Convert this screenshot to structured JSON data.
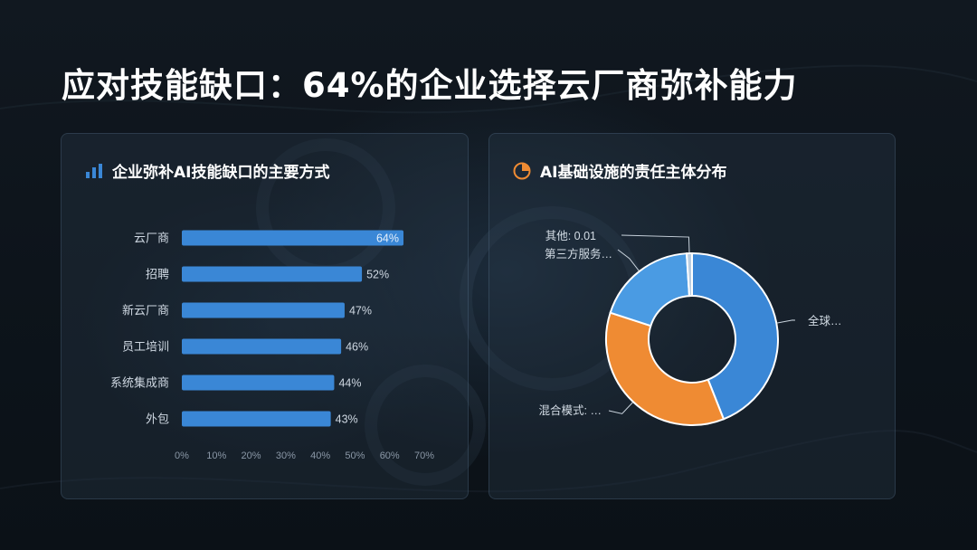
{
  "page": {
    "title": "应对技能缺口：64%的企业选择云厂商弥补能力"
  },
  "left_panel": {
    "title": "企业弥补AI技能缺口的主要方式",
    "icon": "bar-chart-icon"
  },
  "right_panel": {
    "title": "AI基础设施的责任主体分布",
    "icon": "pie-chart-icon"
  },
  "colors": {
    "bar": "#3a87d6",
    "donut_blue": "#3a87d6",
    "donut_orange": "#ef8b33",
    "donut_lightblue": "#4a9be3",
    "donut_other": "#b9cde0"
  },
  "chart_data": [
    {
      "type": "bar",
      "orientation": "horizontal",
      "categories": [
        "云厂商",
        "招聘",
        "新云厂商",
        "员工培训",
        "系统集成商",
        "外包"
      ],
      "values": [
        64,
        52,
        47,
        46,
        44,
        43
      ],
      "value_labels": [
        "64%",
        "52%",
        "47%",
        "46%",
        "44%",
        "43%"
      ],
      "xlim": [
        0,
        70
      ],
      "x_ticks": [
        "0%",
        "10%",
        "20%",
        "30%",
        "40%",
        "50%",
        "60%",
        "70%"
      ],
      "grid": false,
      "legend": "none"
    },
    {
      "type": "pie",
      "donut": true,
      "slice_labels": [
        "全球…",
        "混合模式: …",
        "第三方服务…",
        "其他: 0.01"
      ],
      "values": [
        0.44,
        0.36,
        0.19,
        0.01
      ],
      "legend": "none"
    }
  ]
}
